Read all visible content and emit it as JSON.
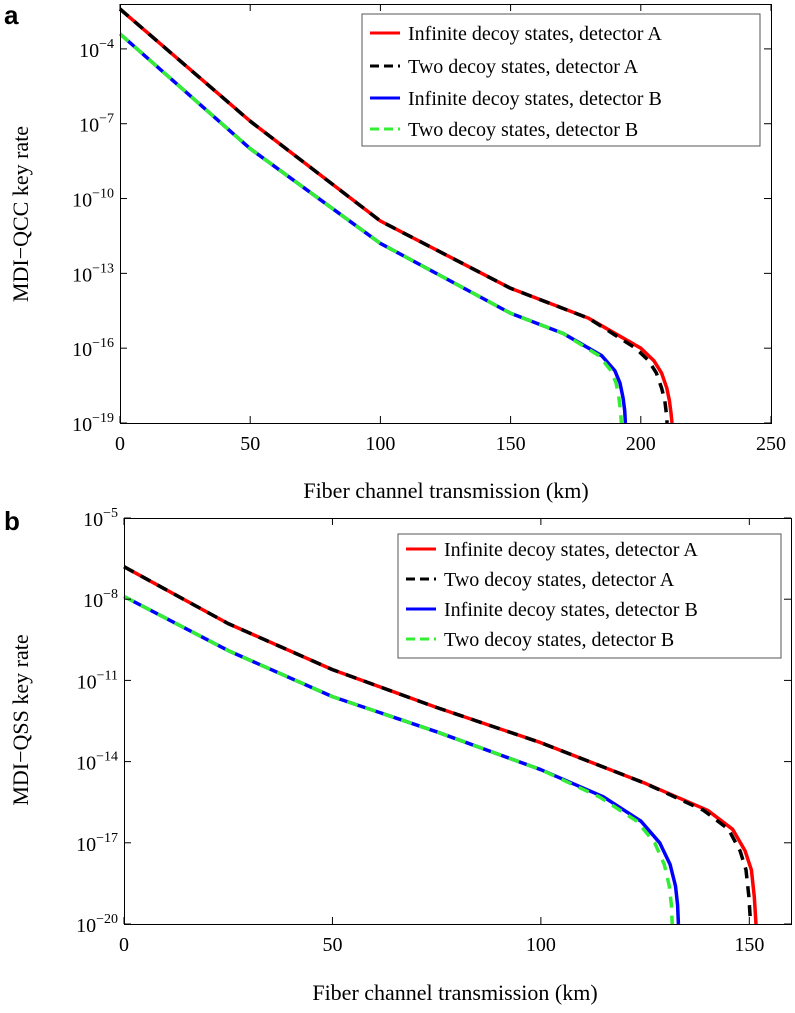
{
  "chart_data": [
    {
      "type": "line",
      "panel_label": "a",
      "title": "",
      "xlabel": "Fiber channel transmission (km)",
      "ylabel": "MDI−QCC key rate",
      "x_scale": "linear",
      "y_scale": "log",
      "xlim": [
        0,
        250
      ],
      "ylim_exponent": [
        -19,
        -2.2
      ],
      "x_ticks": [
        "0",
        "50",
        "100",
        "150",
        "200",
        "250"
      ],
      "y_ticks": [
        {
          "base": "10",
          "exp": "−19"
        },
        {
          "base": "10",
          "exp": "−16"
        },
        {
          "base": "10",
          "exp": "−13"
        },
        {
          "base": "10",
          "exp": "−10"
        },
        {
          "base": "10",
          "exp": "−7"
        },
        {
          "base": "10",
          "exp": "−4"
        }
      ],
      "legend_position": "top-right",
      "series": [
        {
          "name": "Infinite decoy states, detector A",
          "color": "#ff0000",
          "dashed": false,
          "x": [
            0,
            50,
            100,
            150,
            180,
            200,
            205,
            208,
            210,
            211,
            211.6,
            212
          ],
          "log10_y": [
            -2.4,
            -6.9,
            -10.9,
            -13.6,
            -14.8,
            -16.0,
            -16.5,
            -17.0,
            -17.6,
            -18.1,
            -18.6,
            -19
          ]
        },
        {
          "name": "Two decoy states, detector A",
          "color": "#000000",
          "dashed": true,
          "x": [
            0,
            50,
            100,
            150,
            180,
            198,
            203,
            206,
            208,
            209.2,
            209.8,
            210.1
          ],
          "log10_y": [
            -2.4,
            -6.9,
            -10.9,
            -13.6,
            -14.8,
            -16.0,
            -16.5,
            -17.0,
            -17.6,
            -18.1,
            -18.6,
            -19
          ]
        },
        {
          "name": "Infinite decoy states, detector B",
          "color": "#0000ff",
          "dashed": false,
          "x": [
            0,
            50,
            100,
            150,
            170,
            185,
            190,
            192,
            193.2,
            193.8,
            194.1
          ],
          "log10_y": [
            -3.4,
            -8.0,
            -11.8,
            -14.6,
            -15.4,
            -16.3,
            -16.9,
            -17.4,
            -18.0,
            -18.5,
            -19
          ]
        },
        {
          "name": "Two decoy states, detector B",
          "color": "#33ee33",
          "dashed": true,
          "x": [
            0,
            50,
            100,
            150,
            170,
            184,
            188.5,
            190.5,
            191.6,
            192.2,
            192.5
          ],
          "log10_y": [
            -3.4,
            -8.0,
            -11.8,
            -14.6,
            -15.4,
            -16.3,
            -16.9,
            -17.4,
            -18.0,
            -18.5,
            -19
          ]
        }
      ]
    },
    {
      "type": "line",
      "panel_label": "b",
      "title": "",
      "xlabel": "Fiber channel transmission (km)",
      "ylabel": "MDI−QSS key rate",
      "x_scale": "linear",
      "y_scale": "log",
      "xlim": [
        0,
        160
      ],
      "ylim_exponent": [
        -20,
        -5
      ],
      "x_ticks": [
        "0",
        "50",
        "100",
        "150"
      ],
      "y_ticks": [
        {
          "base": "10",
          "exp": "−20"
        },
        {
          "base": "10",
          "exp": "−17"
        },
        {
          "base": "10",
          "exp": "−14"
        },
        {
          "base": "10",
          "exp": "−11"
        },
        {
          "base": "10",
          "exp": "−8"
        },
        {
          "base": "10",
          "exp": "−5"
        }
      ],
      "legend_position": "top-right",
      "series": [
        {
          "name": "Infinite decoy states, detector A",
          "color": "#ff0000",
          "dashed": false,
          "x": [
            0,
            25,
            50,
            75,
            100,
            125,
            140,
            146,
            149,
            150.5,
            151.2,
            151.6
          ],
          "log10_y": [
            -6.8,
            -8.9,
            -10.6,
            -12.0,
            -13.3,
            -14.8,
            -15.8,
            -16.5,
            -17.3,
            -18.0,
            -19.0,
            -20
          ]
        },
        {
          "name": "Two decoy states, detector A",
          "color": "#000000",
          "dashed": true,
          "x": [
            0,
            25,
            50,
            75,
            100,
            125,
            139,
            145,
            147.8,
            149.2,
            149.9,
            150.3
          ],
          "log10_y": [
            -6.8,
            -8.9,
            -10.6,
            -12.0,
            -13.3,
            -14.8,
            -15.8,
            -16.5,
            -17.3,
            -18.0,
            -19.0,
            -20
          ]
        },
        {
          "name": "Infinite decoy states, detector B",
          "color": "#0000ff",
          "dashed": false,
          "x": [
            0,
            25,
            50,
            75,
            100,
            115,
            124,
            128.5,
            131,
            132.3,
            132.8,
            133
          ],
          "log10_y": [
            -7.9,
            -9.9,
            -11.6,
            -12.9,
            -14.3,
            -15.3,
            -16.2,
            -17.0,
            -17.8,
            -18.6,
            -19.3,
            -20
          ]
        },
        {
          "name": "Two decoy states, detector B",
          "color": "#33ee33",
          "dashed": true,
          "x": [
            0,
            25,
            50,
            75,
            100,
            114,
            123,
            127.3,
            129.6,
            130.8,
            131.3,
            131.5
          ],
          "log10_y": [
            -7.9,
            -9.9,
            -11.6,
            -12.9,
            -14.3,
            -15.3,
            -16.2,
            -17.0,
            -17.8,
            -18.6,
            -19.3,
            -20
          ]
        }
      ]
    }
  ]
}
